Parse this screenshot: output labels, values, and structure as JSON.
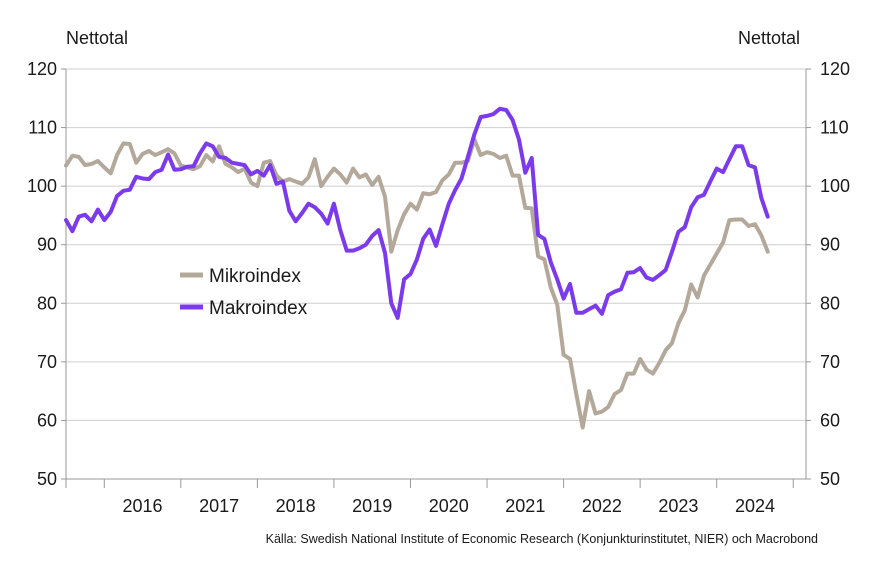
{
  "chart_data": {
    "type": "line",
    "left_axis_label": "Nettotal",
    "right_axis_label": "Nettotal",
    "ylim": [
      50,
      120
    ],
    "yticks": [
      50,
      60,
      70,
      80,
      90,
      100,
      110,
      120
    ],
    "xlim": [
      "2015-07",
      "2025-03"
    ],
    "x_categories": [
      "2016",
      "2017",
      "2018",
      "2019",
      "2020",
      "2021",
      "2022",
      "2023",
      "2024"
    ],
    "grid": true,
    "legend_position": "center-left",
    "source": "Källa: Swedish National Institute of Economic Research (Konjunkturinstitutet, NIER)  och Macrobond",
    "series": [
      {
        "name": "Mikroindex",
        "color": "#b3a89a",
        "points": [
          [
            "2015-07",
            103.5
          ],
          [
            "2015-08",
            105.2
          ],
          [
            "2015-09",
            105.0
          ],
          [
            "2015-10",
            103.6
          ],
          [
            "2015-11",
            103.8
          ],
          [
            "2015-12",
            104.3
          ],
          [
            "2016-01",
            103.2
          ],
          [
            "2016-02",
            102.2
          ],
          [
            "2016-03",
            105.3
          ],
          [
            "2016-04",
            107.3
          ],
          [
            "2016-05",
            107.2
          ],
          [
            "2016-06",
            104.0
          ],
          [
            "2016-07",
            105.5
          ],
          [
            "2016-08",
            106.0
          ],
          [
            "2016-09",
            105.3
          ],
          [
            "2016-10",
            105.8
          ],
          [
            "2016-11",
            106.3
          ],
          [
            "2016-12",
            105.6
          ],
          [
            "2017-01",
            103.5
          ],
          [
            "2017-02",
            103.2
          ],
          [
            "2017-03",
            102.9
          ],
          [
            "2017-04",
            103.4
          ],
          [
            "2017-05",
            105.3
          ],
          [
            "2017-06",
            104.2
          ],
          [
            "2017-07",
            106.8
          ],
          [
            "2017-08",
            103.8
          ],
          [
            "2017-09",
            103.2
          ],
          [
            "2017-10",
            102.4
          ],
          [
            "2017-11",
            103.0
          ],
          [
            "2017-12",
            100.6
          ],
          [
            "2018-01",
            100.0
          ],
          [
            "2018-02",
            104.0
          ],
          [
            "2018-03",
            104.3
          ],
          [
            "2018-04",
            101.8
          ],
          [
            "2018-05",
            100.8
          ],
          [
            "2018-06",
            101.2
          ],
          [
            "2018-07",
            100.8
          ],
          [
            "2018-08",
            100.4
          ],
          [
            "2018-09",
            101.5
          ],
          [
            "2018-10",
            104.6
          ],
          [
            "2018-11",
            100.0
          ],
          [
            "2018-12",
            101.6
          ],
          [
            "2019-01",
            103.0
          ],
          [
            "2019-02",
            102.0
          ],
          [
            "2019-03",
            100.6
          ],
          [
            "2019-04",
            103.0
          ],
          [
            "2019-05",
            101.5
          ],
          [
            "2019-06",
            102.0
          ],
          [
            "2019-07",
            100.2
          ],
          [
            "2019-08",
            101.6
          ],
          [
            "2019-09",
            98.2
          ],
          [
            "2019-10",
            88.8
          ],
          [
            "2019-11",
            92.5
          ],
          [
            "2019-12",
            95.2
          ],
          [
            "2020-01",
            97.0
          ],
          [
            "2020-02",
            96.0
          ],
          [
            "2020-03",
            98.8
          ],
          [
            "2020-04",
            98.6
          ],
          [
            "2020-05",
            99.0
          ],
          [
            "2020-06",
            101.0
          ],
          [
            "2020-07",
            102.0
          ],
          [
            "2020-08",
            104.0
          ],
          [
            "2020-09",
            104.0
          ],
          [
            "2020-10",
            104.3
          ],
          [
            "2020-11",
            108.0
          ],
          [
            "2020-12",
            105.3
          ],
          [
            "2021-01",
            105.8
          ],
          [
            "2021-02",
            105.5
          ],
          [
            "2021-03",
            104.8
          ],
          [
            "2021-04",
            105.2
          ],
          [
            "2021-05",
            101.8
          ],
          [
            "2021-06",
            101.8
          ],
          [
            "2021-07",
            96.3
          ],
          [
            "2021-08",
            96.2
          ],
          [
            "2021-09",
            88.0
          ],
          [
            "2021-10",
            87.5
          ],
          [
            "2021-11",
            82.7
          ],
          [
            "2021-12",
            79.8
          ],
          [
            "2022-01",
            71.2
          ],
          [
            "2022-02",
            70.5
          ],
          [
            "2022-03",
            64.5
          ],
          [
            "2022-04",
            58.8
          ],
          [
            "2022-05",
            65.0
          ],
          [
            "2022-06",
            61.2
          ],
          [
            "2022-07",
            61.5
          ],
          [
            "2022-08",
            62.3
          ],
          [
            "2022-09",
            64.5
          ],
          [
            "2022-10",
            65.2
          ],
          [
            "2022-11",
            68.0
          ],
          [
            "2022-12",
            68.0
          ],
          [
            "2023-01",
            70.5
          ],
          [
            "2023-02",
            68.7
          ],
          [
            "2023-03",
            68.0
          ],
          [
            "2023-04",
            69.8
          ],
          [
            "2023-05",
            72.0
          ],
          [
            "2023-06",
            73.2
          ],
          [
            "2023-07",
            76.6
          ],
          [
            "2023-08",
            78.8
          ],
          [
            "2023-09",
            83.2
          ],
          [
            "2023-10",
            81.0
          ],
          [
            "2023-11",
            84.7
          ],
          [
            "2023-12",
            86.6
          ],
          [
            "2024-01",
            88.5
          ],
          [
            "2024-02",
            90.4
          ],
          [
            "2024-03",
            94.2
          ],
          [
            "2024-04",
            94.3
          ],
          [
            "2024-05",
            94.3
          ],
          [
            "2024-06",
            93.2
          ],
          [
            "2024-07",
            93.5
          ],
          [
            "2024-08",
            91.6
          ],
          [
            "2024-09",
            88.8
          ]
        ]
      },
      {
        "name": "Makroindex",
        "color": "#7c3aed",
        "points": [
          [
            "2015-07",
            94.2
          ],
          [
            "2015-08",
            92.3
          ],
          [
            "2015-09",
            94.8
          ],
          [
            "2015-10",
            95.1
          ],
          [
            "2015-11",
            94.0
          ],
          [
            "2015-12",
            96.0
          ],
          [
            "2016-01",
            94.2
          ],
          [
            "2016-02",
            95.6
          ],
          [
            "2016-03",
            98.3
          ],
          [
            "2016-04",
            99.2
          ],
          [
            "2016-05",
            99.4
          ],
          [
            "2016-06",
            101.6
          ],
          [
            "2016-07",
            101.3
          ],
          [
            "2016-08",
            101.2
          ],
          [
            "2016-09",
            102.4
          ],
          [
            "2016-10",
            102.8
          ],
          [
            "2016-11",
            105.4
          ],
          [
            "2016-12",
            102.8
          ],
          [
            "2017-01",
            102.9
          ],
          [
            "2017-02",
            103.3
          ],
          [
            "2017-03",
            103.4
          ],
          [
            "2017-04",
            105.6
          ],
          [
            "2017-05",
            107.3
          ],
          [
            "2017-06",
            106.8
          ],
          [
            "2017-07",
            105.0
          ],
          [
            "2017-08",
            104.8
          ],
          [
            "2017-09",
            104.0
          ],
          [
            "2017-10",
            103.8
          ],
          [
            "2017-11",
            103.6
          ],
          [
            "2017-12",
            102.0
          ],
          [
            "2018-01",
            102.6
          ],
          [
            "2018-02",
            101.8
          ],
          [
            "2018-03",
            103.6
          ],
          [
            "2018-04",
            100.4
          ],
          [
            "2018-05",
            100.8
          ],
          [
            "2018-06",
            95.8
          ],
          [
            "2018-07",
            94.0
          ],
          [
            "2018-08",
            95.4
          ],
          [
            "2018-09",
            97.0
          ],
          [
            "2018-10",
            96.4
          ],
          [
            "2018-11",
            95.3
          ],
          [
            "2018-12",
            93.6
          ],
          [
            "2019-01",
            97.0
          ],
          [
            "2019-02",
            92.5
          ],
          [
            "2019-03",
            89.0
          ],
          [
            "2019-04",
            89.0
          ],
          [
            "2019-05",
            89.4
          ],
          [
            "2019-06",
            90.0
          ],
          [
            "2019-07",
            91.5
          ],
          [
            "2019-08",
            92.5
          ],
          [
            "2019-09",
            88.6
          ],
          [
            "2019-10",
            80.0
          ],
          [
            "2019-11",
            77.5
          ],
          [
            "2019-12",
            84.1
          ],
          [
            "2020-01",
            85.0
          ],
          [
            "2020-02",
            87.5
          ],
          [
            "2020-03",
            91.0
          ],
          [
            "2020-04",
            92.6
          ],
          [
            "2020-05",
            89.8
          ],
          [
            "2020-06",
            93.5
          ],
          [
            "2020-07",
            97.0
          ],
          [
            "2020-08",
            99.3
          ],
          [
            "2020-09",
            101.3
          ],
          [
            "2020-10",
            105.0
          ],
          [
            "2020-11",
            108.8
          ],
          [
            "2020-12",
            111.8
          ],
          [
            "2021-01",
            112.0
          ],
          [
            "2021-02",
            112.3
          ],
          [
            "2021-03",
            113.2
          ],
          [
            "2021-04",
            113.0
          ],
          [
            "2021-05",
            111.3
          ],
          [
            "2021-06",
            108.0
          ],
          [
            "2021-07",
            102.3
          ],
          [
            "2021-08",
            104.8
          ],
          [
            "2021-09",
            91.7
          ],
          [
            "2021-10",
            91.0
          ],
          [
            "2021-11",
            87.0
          ],
          [
            "2021-12",
            84.1
          ],
          [
            "2022-01",
            80.8
          ],
          [
            "2022-02",
            83.3
          ],
          [
            "2022-03",
            78.4
          ],
          [
            "2022-04",
            78.4
          ],
          [
            "2022-05",
            79.0
          ],
          [
            "2022-06",
            79.6
          ],
          [
            "2022-07",
            78.2
          ],
          [
            "2022-08",
            81.4
          ],
          [
            "2022-09",
            82.0
          ],
          [
            "2022-10",
            82.4
          ],
          [
            "2022-11",
            85.2
          ],
          [
            "2022-12",
            85.3
          ],
          [
            "2023-01",
            86.0
          ],
          [
            "2023-02",
            84.4
          ],
          [
            "2023-03",
            84.0
          ],
          [
            "2023-04",
            84.8
          ],
          [
            "2023-05",
            85.7
          ],
          [
            "2023-06",
            88.8
          ],
          [
            "2023-07",
            92.2
          ],
          [
            "2023-08",
            93.0
          ],
          [
            "2023-09",
            96.4
          ],
          [
            "2023-10",
            98.1
          ],
          [
            "2023-11",
            98.5
          ],
          [
            "2023-12",
            100.8
          ],
          [
            "2024-01",
            103.0
          ],
          [
            "2024-02",
            102.4
          ],
          [
            "2024-03",
            104.6
          ],
          [
            "2024-04",
            106.8
          ],
          [
            "2024-05",
            106.8
          ],
          [
            "2024-06",
            103.6
          ],
          [
            "2024-07",
            103.2
          ],
          [
            "2024-08",
            98.0
          ],
          [
            "2024-09",
            94.8
          ]
        ]
      }
    ]
  }
}
